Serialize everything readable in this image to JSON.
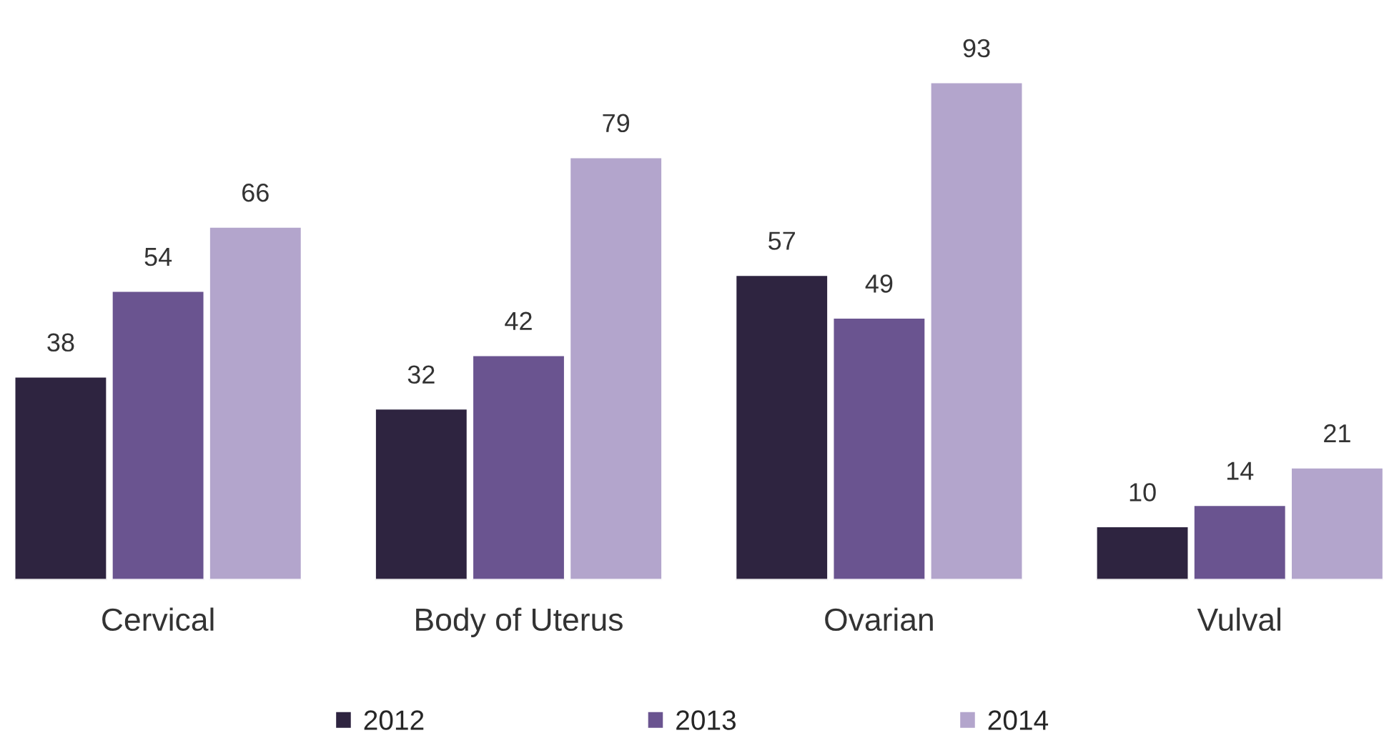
{
  "chart_data": {
    "type": "bar",
    "categories": [
      "Cervical",
      "Body of Uterus",
      "Ovarian",
      "Vulval"
    ],
    "series": [
      {
        "name": "2012",
        "color": "#2e2440",
        "values": [
          38,
          32,
          57,
          10
        ]
      },
      {
        "name": "2013",
        "color": "#6a5490",
        "values": [
          54,
          42,
          49,
          14
        ]
      },
      {
        "name": "2014",
        "color": "#b3a5cc",
        "values": [
          66,
          79,
          93,
          21
        ]
      }
    ],
    "data_labels": true,
    "legend": "bottom",
    "grid": false
  }
}
